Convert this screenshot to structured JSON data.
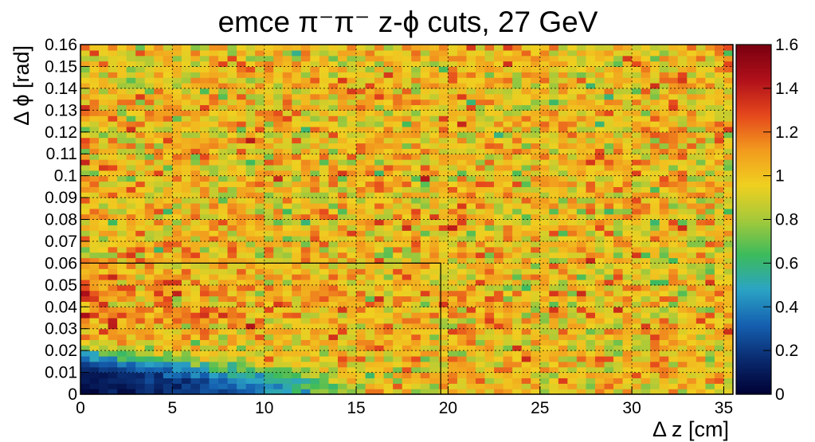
{
  "chart_data": {
    "type": "heatmap",
    "title": "emce π⁻π⁻  z-ϕ cuts, 27 GeV",
    "xlabel": "Δ z [cm]",
    "ylabel": "Δ ϕ [rad]",
    "xlim": [
      0,
      35.5
    ],
    "ylim": [
      0,
      0.16
    ],
    "x_ticks": [
      "0",
      "5",
      "10",
      "15",
      "20",
      "25",
      "30",
      "35"
    ],
    "x_tick_values": [
      0,
      5,
      10,
      15,
      20,
      25,
      30,
      35
    ],
    "y_ticks": [
      "0",
      "0.01",
      "0.02",
      "0.03",
      "0.04",
      "0.05",
      "0.06",
      "0.07",
      "0.08",
      "0.09",
      "0.1",
      "0.11",
      "0.12",
      "0.13",
      "0.14",
      "0.15",
      "0.16"
    ],
    "y_tick_values": [
      0,
      0.01,
      0.02,
      0.03,
      0.04,
      0.05,
      0.06,
      0.07,
      0.08,
      0.09,
      0.1,
      0.11,
      0.12,
      0.13,
      0.14,
      0.15,
      0.16
    ],
    "z_range": [
      0,
      1.6
    ],
    "z_ticks": [
      "0",
      "0.2",
      "0.4",
      "0.6",
      "0.8",
      "1",
      "1.2",
      "1.4",
      "1.6"
    ],
    "z_tick_values": [
      0,
      0.2,
      0.4,
      0.6,
      0.8,
      1.0,
      1.2,
      1.4,
      1.6
    ],
    "bins": {
      "nx": 71,
      "ny": 64
    },
    "description": "Ratio near 1 across the plane with random fluctuations; suppressed region (values 0–0.5) at small Δz (< ~15 cm) and small Δϕ (< ~0.02 rad); mild enhancement (~1.2) at Δϕ ≈ 0.03–0.06 for small Δz.",
    "cut_box": {
      "z_max": 19.6,
      "phi_max": 0.06
    },
    "grid": true,
    "palette": "kBird-like rainbow",
    "colors": [
      "#000033",
      "#0a2a6e",
      "#1560b0",
      "#2ba3c4",
      "#3dbb5c",
      "#a5c93a",
      "#f0d020",
      "#f29a1e",
      "#e5471c",
      "#b0101a",
      "#7a0010"
    ]
  }
}
